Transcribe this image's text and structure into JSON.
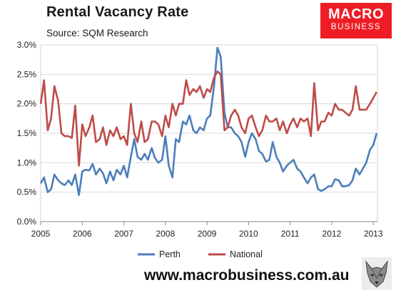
{
  "header": {
    "title": "Rental Vacancy Rate",
    "subtitle": "Source: SQM Research"
  },
  "logo": {
    "line1": "MACRO",
    "line2": "BUSINESS",
    "color": "#ee1d25"
  },
  "footer": {
    "url": "www.macrobusiness.com.au"
  },
  "chart_data": {
    "type": "line",
    "title": "Rental Vacancy Rate",
    "subtitle": "Source: SQM Research",
    "xlabel": "",
    "ylabel": "",
    "xlim": [
      2005,
      2013.1
    ],
    "ylim": [
      0,
      3
    ],
    "x_ticks": [
      2005,
      2006,
      2007,
      2008,
      2009,
      2010,
      2011,
      2012,
      2013
    ],
    "y_ticks": [
      "0.0%",
      "0.5%",
      "1.0%",
      "1.5%",
      "2.0%",
      "2.5%",
      "3.0%"
    ],
    "y_tick_values": [
      0,
      0.5,
      1.0,
      1.5,
      2.0,
      2.5,
      3.0
    ],
    "grid": "horizontal",
    "legend": "bottom",
    "series": [
      {
        "name": "Perth",
        "color": "#4a7ebb",
        "points": [
          [
            2005.0,
            0.65
          ],
          [
            2005.08,
            0.75
          ],
          [
            2005.17,
            0.5
          ],
          [
            2005.25,
            0.55
          ],
          [
            2005.33,
            0.8
          ],
          [
            2005.42,
            0.7
          ],
          [
            2005.5,
            0.65
          ],
          [
            2005.58,
            0.62
          ],
          [
            2005.67,
            0.7
          ],
          [
            2005.75,
            0.62
          ],
          [
            2005.83,
            0.8
          ],
          [
            2005.92,
            0.45
          ],
          [
            2006.0,
            0.85
          ],
          [
            2006.08,
            0.88
          ],
          [
            2006.17,
            0.87
          ],
          [
            2006.25,
            0.98
          ],
          [
            2006.33,
            0.8
          ],
          [
            2006.42,
            0.9
          ],
          [
            2006.5,
            0.82
          ],
          [
            2006.58,
            0.65
          ],
          [
            2006.67,
            0.85
          ],
          [
            2006.75,
            0.7
          ],
          [
            2006.83,
            0.88
          ],
          [
            2006.92,
            0.8
          ],
          [
            2007.0,
            0.95
          ],
          [
            2007.08,
            0.75
          ],
          [
            2007.17,
            1.1
          ],
          [
            2007.25,
            1.4
          ],
          [
            2007.33,
            1.1
          ],
          [
            2007.42,
            1.05
          ],
          [
            2007.5,
            1.15
          ],
          [
            2007.58,
            1.05
          ],
          [
            2007.67,
            1.25
          ],
          [
            2007.75,
            1.08
          ],
          [
            2007.83,
            1.0
          ],
          [
            2007.92,
            1.05
          ],
          [
            2008.0,
            1.45
          ],
          [
            2008.08,
            0.95
          ],
          [
            2008.17,
            0.75
          ],
          [
            2008.25,
            1.4
          ],
          [
            2008.33,
            1.35
          ],
          [
            2008.42,
            1.7
          ],
          [
            2008.5,
            1.65
          ],
          [
            2008.58,
            1.8
          ],
          [
            2008.67,
            1.55
          ],
          [
            2008.75,
            1.5
          ],
          [
            2008.83,
            1.6
          ],
          [
            2008.92,
            1.55
          ],
          [
            2009.0,
            1.75
          ],
          [
            2009.08,
            1.8
          ],
          [
            2009.17,
            2.3
          ],
          [
            2009.25,
            2.95
          ],
          [
            2009.33,
            2.8
          ],
          [
            2009.42,
            1.85
          ],
          [
            2009.5,
            1.6
          ],
          [
            2009.58,
            1.6
          ],
          [
            2009.67,
            1.5
          ],
          [
            2009.75,
            1.45
          ],
          [
            2009.83,
            1.35
          ],
          [
            2009.92,
            1.1
          ],
          [
            2010.0,
            1.35
          ],
          [
            2010.08,
            1.5
          ],
          [
            2010.17,
            1.4
          ],
          [
            2010.25,
            1.2
          ],
          [
            2010.33,
            1.15
          ],
          [
            2010.42,
            1.02
          ],
          [
            2010.5,
            1.05
          ],
          [
            2010.58,
            1.35
          ],
          [
            2010.67,
            1.1
          ],
          [
            2010.75,
            1.0
          ],
          [
            2010.83,
            0.85
          ],
          [
            2010.92,
            0.95
          ],
          [
            2011.0,
            1.0
          ],
          [
            2011.08,
            1.05
          ],
          [
            2011.17,
            0.9
          ],
          [
            2011.25,
            0.85
          ],
          [
            2011.33,
            0.75
          ],
          [
            2011.42,
            0.65
          ],
          [
            2011.5,
            0.75
          ],
          [
            2011.58,
            0.8
          ],
          [
            2011.67,
            0.55
          ],
          [
            2011.75,
            0.52
          ],
          [
            2011.83,
            0.55
          ],
          [
            2011.92,
            0.6
          ],
          [
            2012.0,
            0.6
          ],
          [
            2012.08,
            0.72
          ],
          [
            2012.17,
            0.7
          ],
          [
            2012.25,
            0.6
          ],
          [
            2012.33,
            0.6
          ],
          [
            2012.42,
            0.62
          ],
          [
            2012.5,
            0.7
          ],
          [
            2012.58,
            0.9
          ],
          [
            2012.67,
            0.8
          ],
          [
            2012.75,
            0.9
          ],
          [
            2012.83,
            1.0
          ],
          [
            2012.92,
            1.22
          ],
          [
            2013.0,
            1.3
          ],
          [
            2013.08,
            1.5
          ]
        ]
      },
      {
        "name": "National",
        "color": "#be4b48",
        "points": [
          [
            2005.0,
            2.0
          ],
          [
            2005.08,
            2.4
          ],
          [
            2005.17,
            1.55
          ],
          [
            2005.25,
            1.75
          ],
          [
            2005.33,
            2.3
          ],
          [
            2005.42,
            2.05
          ],
          [
            2005.5,
            1.5
          ],
          [
            2005.58,
            1.45
          ],
          [
            2005.67,
            1.45
          ],
          [
            2005.75,
            1.42
          ],
          [
            2005.83,
            1.97
          ],
          [
            2005.92,
            0.95
          ],
          [
            2006.0,
            1.65
          ],
          [
            2006.08,
            1.45
          ],
          [
            2006.17,
            1.6
          ],
          [
            2006.25,
            1.8
          ],
          [
            2006.33,
            1.35
          ],
          [
            2006.42,
            1.4
          ],
          [
            2006.5,
            1.6
          ],
          [
            2006.58,
            1.3
          ],
          [
            2006.67,
            1.55
          ],
          [
            2006.75,
            1.45
          ],
          [
            2006.83,
            1.6
          ],
          [
            2006.92,
            1.4
          ],
          [
            2007.0,
            1.45
          ],
          [
            2007.08,
            1.3
          ],
          [
            2007.17,
            2.0
          ],
          [
            2007.25,
            1.5
          ],
          [
            2007.33,
            1.35
          ],
          [
            2007.42,
            1.7
          ],
          [
            2007.5,
            1.35
          ],
          [
            2007.58,
            1.4
          ],
          [
            2007.67,
            1.7
          ],
          [
            2007.75,
            1.7
          ],
          [
            2007.83,
            1.65
          ],
          [
            2007.92,
            1.45
          ],
          [
            2008.0,
            1.8
          ],
          [
            2008.08,
            1.6
          ],
          [
            2008.17,
            2.0
          ],
          [
            2008.25,
            1.8
          ],
          [
            2008.33,
            2.0
          ],
          [
            2008.42,
            2.0
          ],
          [
            2008.5,
            2.4
          ],
          [
            2008.58,
            2.15
          ],
          [
            2008.67,
            2.25
          ],
          [
            2008.75,
            2.2
          ],
          [
            2008.83,
            2.3
          ],
          [
            2008.92,
            2.1
          ],
          [
            2009.0,
            2.25
          ],
          [
            2009.08,
            2.2
          ],
          [
            2009.17,
            2.45
          ],
          [
            2009.25,
            2.55
          ],
          [
            2009.33,
            2.5
          ],
          [
            2009.42,
            1.55
          ],
          [
            2009.5,
            1.6
          ],
          [
            2009.58,
            1.8
          ],
          [
            2009.67,
            1.9
          ],
          [
            2009.75,
            1.8
          ],
          [
            2009.83,
            1.6
          ],
          [
            2009.92,
            1.5
          ],
          [
            2010.0,
            1.75
          ],
          [
            2010.08,
            1.8
          ],
          [
            2010.17,
            1.6
          ],
          [
            2010.25,
            1.45
          ],
          [
            2010.33,
            1.55
          ],
          [
            2010.42,
            1.8
          ],
          [
            2010.5,
            1.7
          ],
          [
            2010.58,
            1.7
          ],
          [
            2010.67,
            1.75
          ],
          [
            2010.75,
            1.55
          ],
          [
            2010.83,
            1.7
          ],
          [
            2010.92,
            1.5
          ],
          [
            2011.0,
            1.65
          ],
          [
            2011.08,
            1.75
          ],
          [
            2011.17,
            1.6
          ],
          [
            2011.25,
            1.75
          ],
          [
            2011.33,
            1.7
          ],
          [
            2011.42,
            1.75
          ],
          [
            2011.5,
            1.45
          ],
          [
            2011.58,
            2.35
          ],
          [
            2011.67,
            1.55
          ],
          [
            2011.75,
            1.7
          ],
          [
            2011.83,
            1.7
          ],
          [
            2011.92,
            1.85
          ],
          [
            2012.0,
            1.8
          ],
          [
            2012.08,
            2.0
          ],
          [
            2012.17,
            1.9
          ],
          [
            2012.25,
            1.9
          ],
          [
            2012.33,
            1.85
          ],
          [
            2012.42,
            1.8
          ],
          [
            2012.5,
            1.9
          ],
          [
            2012.58,
            2.3
          ],
          [
            2012.67,
            1.9
          ],
          [
            2012.75,
            1.9
          ],
          [
            2012.83,
            1.9
          ],
          [
            2012.92,
            2.0
          ],
          [
            2013.0,
            2.1
          ],
          [
            2013.08,
            2.2
          ]
        ]
      }
    ]
  }
}
